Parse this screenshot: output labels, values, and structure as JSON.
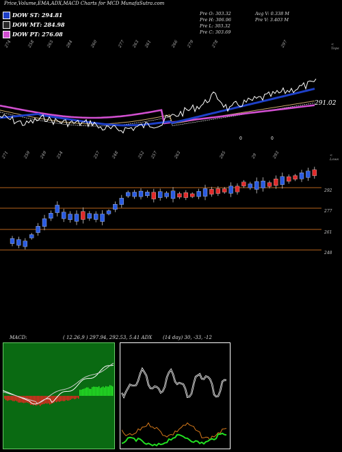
{
  "title": "Price,Volume,EMA,ADX,MACD Charts for MCD MunafaSutra.com",
  "legend": [
    {
      "label": "DOW ST: 294.81",
      "color": "#1e40c8"
    },
    {
      "label": "DOW MT: 284.98",
      "color": "#2a2a2a"
    },
    {
      "label": "DOW PT: 276.08",
      "color": "#d14fd0"
    }
  ],
  "stats": {
    "open": "Pre  O: 303.32",
    "high": "Pre  H: 306.96",
    "low": "Pre  L: 303.32",
    "close": "Pre  C: 303.69",
    "avg_vol": "Avg V: 0.338  M",
    "pre_vol": "Pre  V: 3.403 M"
  },
  "top_label": "< Tops",
  "low_label": "< Lows",
  "last_value_label": "291.02",
  "price_levels": [
    "292",
    "277",
    "261",
    "248"
  ],
  "level_colors": {
    "line": "#b9651c"
  },
  "tops_labels": [
    "274",
    "258",
    "265",
    "284",
    "260",
    "277",
    "263",
    "261",
    "266",
    "279",
    "278",
    "297"
  ],
  "lows_labels": [
    "271",
    "259",
    "249",
    "254",
    "257",
    "248",
    "252",
    "257",
    "263",
    "285",
    "29",
    "293"
  ],
  "macd": {
    "label": "MACD:",
    "values": "( 12.26,9 ) 297.94,  292.53,  5.41 ADX",
    "adx_values": "(14  day) 30,  -33,  -12"
  },
  "chart_data": {
    "type": "candlestick",
    "series": [
      {
        "name": "DOW ST",
        "value": 294.81
      },
      {
        "name": "DOW MT",
        "value": 284.98
      },
      {
        "name": "DOW PT",
        "value": 276.08
      }
    ],
    "levels": [
      292,
      277,
      261,
      248
    ],
    "last_close": 291.02
  }
}
